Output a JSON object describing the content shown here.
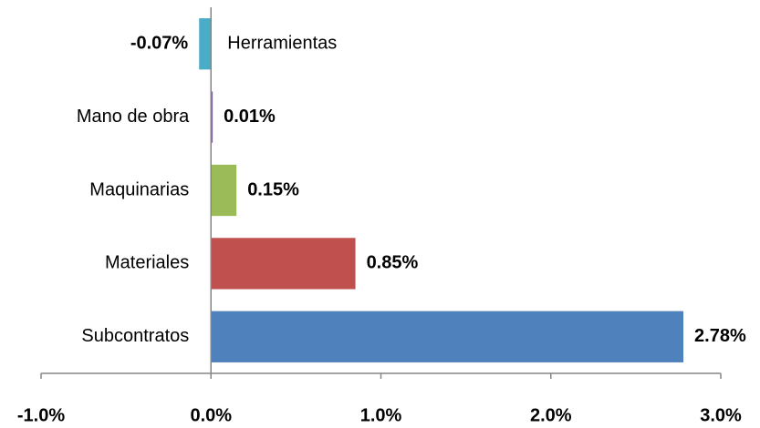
{
  "chart_data": {
    "type": "bar",
    "orientation": "horizontal",
    "categories": [
      "Herramientas",
      "Mano de obra",
      "Maquinarias",
      "Materiales",
      "Subcontratos"
    ],
    "values": [
      -0.07,
      0.01,
      0.15,
      0.85,
      2.78
    ],
    "value_labels": [
      "-0.07%",
      "0.01%",
      "0.15%",
      "0.85%",
      "2.78%"
    ],
    "colors": [
      "#4bacc6",
      "#8064a2",
      "#9bbb59",
      "#c0504d",
      "#4f81bd"
    ],
    "xlim": [
      -1,
      3
    ],
    "xticks": [
      {
        "value": -1,
        "label": "-1.0%"
      },
      {
        "value": 0,
        "label": "0.0%"
      },
      {
        "value": 1,
        "label": "1.0%"
      },
      {
        "value": 2,
        "label": "2.0%"
      },
      {
        "value": 3,
        "label": "3.0%"
      }
    ],
    "grid": false
  }
}
